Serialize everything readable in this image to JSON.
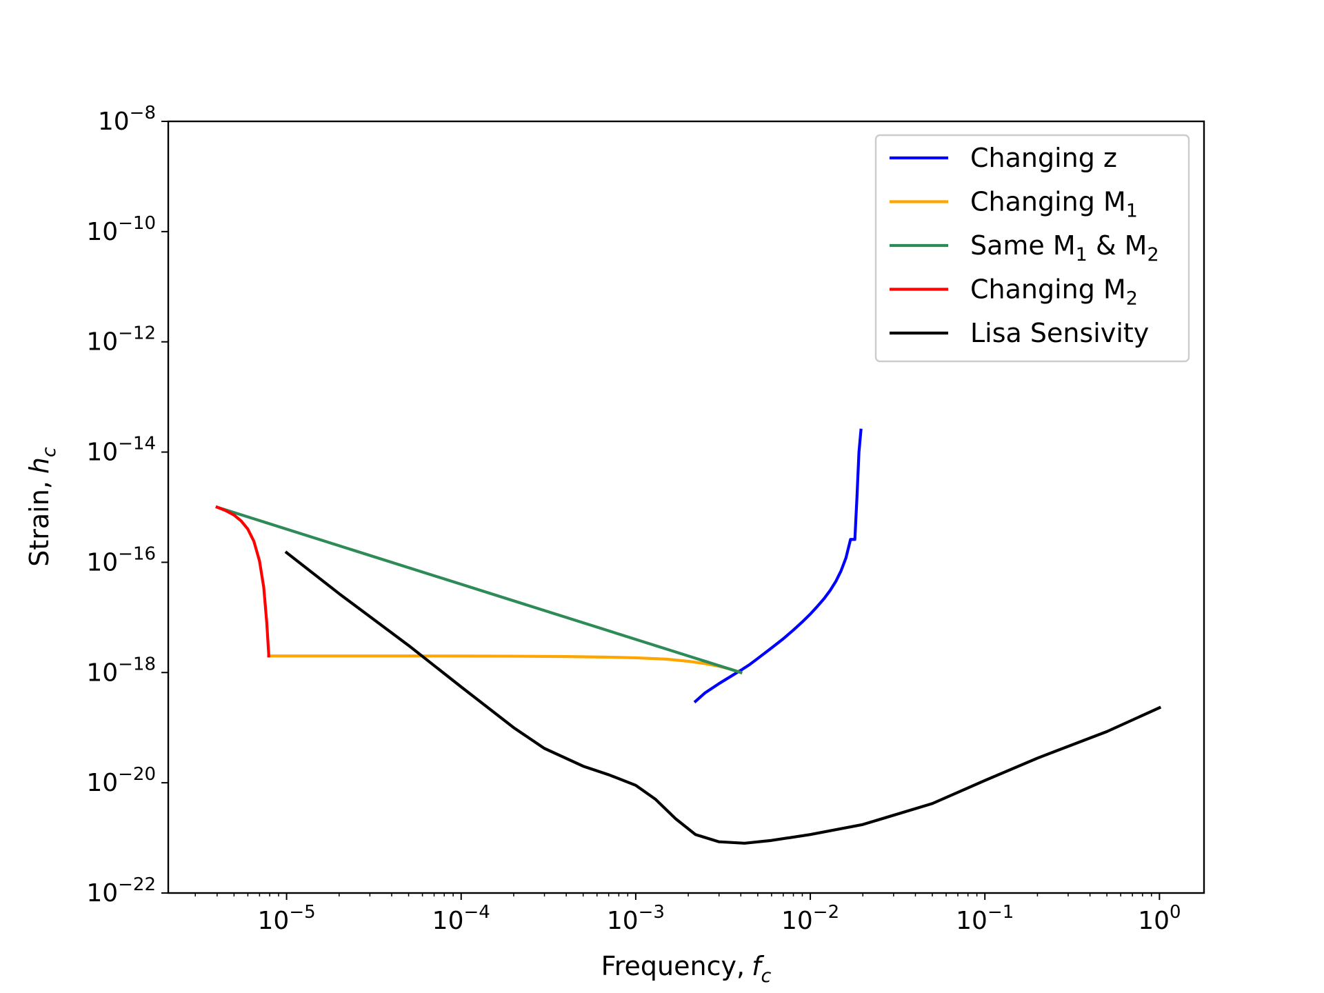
{
  "chart_data": {
    "type": "line",
    "title": "",
    "xlabel": "Frequency,",
    "xlabel_var": "f",
    "xlabel_sub": "c",
    "ylabel": "Strain,",
    "ylabel_var": "h",
    "ylabel_sub": "c",
    "xscale": "log",
    "yscale": "log",
    "xlim": [
      2.1e-06,
      1.8
    ],
    "ylim": [
      1e-22,
      1e-08
    ],
    "grid": false,
    "legend_position": "top-right",
    "x_ticks": [
      {
        "exp": "−5",
        "value": 1e-05
      },
      {
        "exp": "−4",
        "value": 0.0001
      },
      {
        "exp": "−3",
        "value": 0.001
      },
      {
        "exp": "−2",
        "value": 0.01
      },
      {
        "exp": "−1",
        "value": 0.1
      },
      {
        "exp": "0",
        "value": 1
      }
    ],
    "y_ticks": [
      {
        "exp": "−8",
        "value": 1e-08
      },
      {
        "exp": "−10",
        "value": 1e-10
      },
      {
        "exp": "−12",
        "value": 1e-12
      },
      {
        "exp": "−14",
        "value": 1e-14
      },
      {
        "exp": "−16",
        "value": 1e-16
      },
      {
        "exp": "−18",
        "value": 1e-18
      },
      {
        "exp": "−20",
        "value": 1e-20
      },
      {
        "exp": "−22",
        "value": 1e-22
      }
    ],
    "series": [
      {
        "name": "Changing z",
        "label_main": "Changing z",
        "label_sub": "",
        "label_tail": "",
        "label_sub2": "",
        "color": "#0000ff",
        "x": [
          0.0022,
          0.0025,
          0.003,
          0.0035,
          0.004,
          0.0045,
          0.005,
          0.006,
          0.007,
          0.008,
          0.009,
          0.01,
          0.011,
          0.012,
          0.013,
          0.014,
          0.015,
          0.016,
          0.017,
          0.018,
          0.0185,
          0.019,
          0.0195
        ],
        "y": [
          3e-19,
          4.3e-19,
          6.3e-19,
          8.5e-19,
          1.1e-18,
          1.4e-18,
          1.8e-18,
          2.8e-18,
          4.1e-18,
          5.9e-18,
          8.3e-18,
          1.15e-17,
          1.6e-17,
          2.2e-17,
          3.1e-17,
          4.5e-17,
          7e-17,
          1.2e-16,
          2.6e-16,
          2.6e-16,
          1.5e-15,
          1e-14,
          2.5e-14
        ]
      },
      {
        "name": "Changing M1",
        "label_main": "Changing M",
        "label_sub": "1",
        "label_tail": "",
        "label_sub2": "",
        "color": "#ffa500",
        "x": [
          7.9e-06,
          1e-05,
          2e-05,
          5e-05,
          0.0001,
          0.0002,
          0.0004,
          0.0007,
          0.001,
          0.0015,
          0.002,
          0.0025,
          0.003,
          0.0035,
          0.004
        ],
        "y": [
          2e-18,
          2e-18,
          2e-18,
          2e-18,
          1.99e-18,
          1.98e-18,
          1.95e-18,
          1.9e-18,
          1.85e-18,
          1.75e-18,
          1.6e-18,
          1.45e-18,
          1.3e-18,
          1.15e-18,
          1e-18
        ]
      },
      {
        "name": "Same M1 & M2",
        "label_main": "Same M",
        "label_sub": "1",
        "label_tail": " & M",
        "label_sub2": "2",
        "color": "#2e8b57",
        "x": [
          4e-06,
          0.004
        ],
        "y": [
          1e-15,
          1e-18
        ]
      },
      {
        "name": "Changing M2",
        "label_main": "Changing M",
        "label_sub": "2",
        "label_tail": "",
        "label_sub2": "",
        "color": "#ff0000",
        "x": [
          4e-06,
          4.5e-06,
          5e-06,
          5.5e-06,
          6e-06,
          6.5e-06,
          7e-06,
          7.4e-06,
          7.7e-06,
          7.85e-06,
          7.9e-06,
          7.9e-06
        ],
        "y": [
          1e-15,
          8.6e-16,
          7.2e-16,
          5.6e-16,
          4e-16,
          2.4e-16,
          1.05e-16,
          3.5e-17,
          8e-18,
          3e-18,
          2.2e-18,
          2e-18
        ]
      },
      {
        "name": "Lisa Sensivity",
        "label_main": "Lisa Sensivity",
        "label_sub": "",
        "label_tail": "",
        "label_sub2": "",
        "color": "#000000",
        "x": [
          1e-05,
          2e-05,
          5e-05,
          0.0001,
          0.0002,
          0.0003,
          0.0005,
          0.0007,
          0.001,
          0.0013,
          0.0017,
          0.0022,
          0.003,
          0.0042,
          0.006,
          0.01,
          0.02,
          0.05,
          0.1,
          0.2,
          0.5,
          1.0
        ],
        "y": [
          1.5e-16,
          2.7e-17,
          3.1e-18,
          5.5e-19,
          1e-19,
          4.2e-20,
          2e-20,
          1.4e-20,
          9e-21,
          5e-21,
          2.2e-21,
          1.15e-21,
          8.5e-22,
          8e-22,
          9e-22,
          1.15e-21,
          1.75e-21,
          4.2e-21,
          1.1e-20,
          2.8e-20,
          8.5e-20,
          2.3e-19
        ]
      }
    ]
  }
}
